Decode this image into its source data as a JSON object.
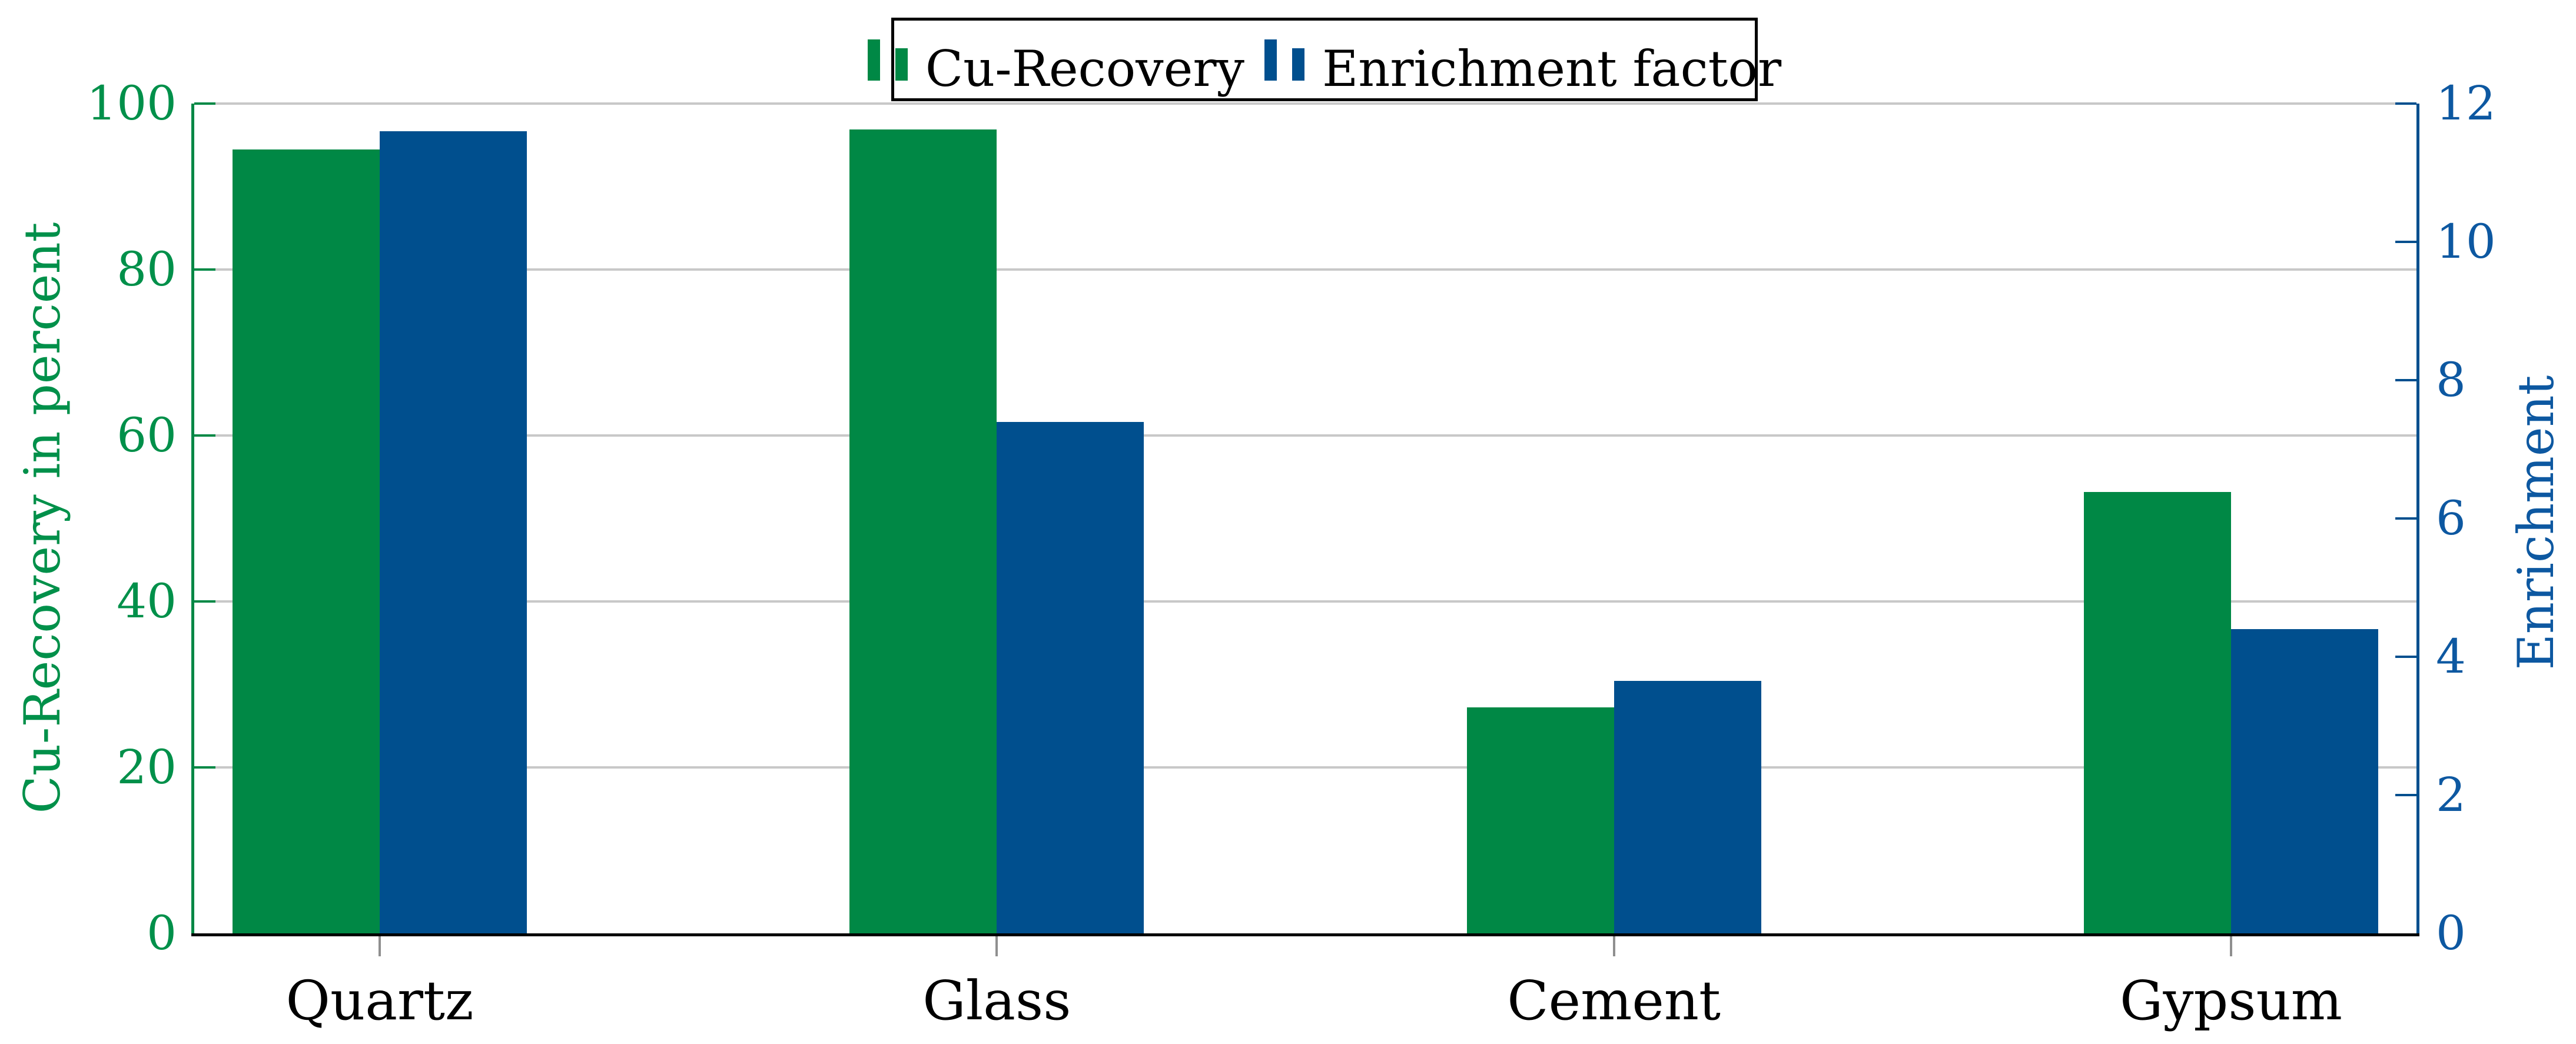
{
  "figure": {
    "background": "#ffffff"
  },
  "legend": {
    "position": "top-center",
    "items": [
      {
        "label": "Cu-Recovery",
        "color": "#008845"
      },
      {
        "label": "Enrichment factor",
        "color": "#004f8e"
      }
    ]
  },
  "left_axis": {
    "title": "Cu-Recovery in percent",
    "color": "#00904a",
    "tick_labels": [
      "0",
      "20",
      "40",
      "60",
      "80",
      "100"
    ],
    "tick_values": [
      0,
      20,
      40,
      60,
      80,
      100
    ],
    "range": [
      0,
      100
    ]
  },
  "right_axis": {
    "title": "Enrichment",
    "color": "#0d58a1",
    "tick_labels": [
      "0",
      "2",
      "4",
      "6",
      "8",
      "10",
      "12"
    ],
    "tick_values": [
      0,
      2,
      4,
      6,
      8,
      10,
      12
    ],
    "range": [
      0,
      12
    ]
  },
  "x_axis": {
    "categories": [
      "Quartz",
      "Glass",
      "Cement",
      "Gypsum"
    ],
    "tick_color": "#8f8f8f"
  },
  "grid_color": "#c8c8c8",
  "chart_data": {
    "type": "bar",
    "categories": [
      "Quartz",
      "Glass",
      "Cement",
      "Gypsum"
    ],
    "series": [
      {
        "name": "Cu-Recovery",
        "axis": "left",
        "unit": "percent",
        "color": "#008845",
        "values": [
          94.5,
          96.9,
          27.2,
          53.2
        ]
      },
      {
        "name": "Enrichment factor",
        "axis": "right",
        "color": "#004f8e",
        "values": [
          11.6,
          7.4,
          3.65,
          4.4
        ]
      }
    ],
    "title": "",
    "xlabel": "",
    "ylabel_left": "Cu-Recovery in percent",
    "ylabel_right": "Enrichment",
    "ylim_left": [
      0,
      100
    ],
    "ylim_right": [
      0,
      12
    ],
    "grid": true,
    "gridline_values_left": [
      20,
      40,
      60,
      80,
      100
    ],
    "legend_position": "top-center"
  }
}
